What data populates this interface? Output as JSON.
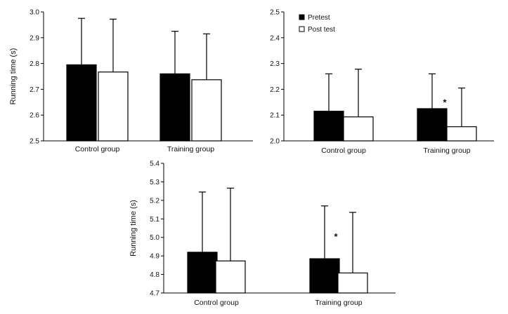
{
  "chart_data": [
    {
      "type": "bar",
      "title": "",
      "ylabel": "Running time (s)",
      "xlabel": "",
      "ylim": [
        2.5,
        3.0
      ],
      "yticks": [
        "2.5",
        "2.6",
        "2.7",
        "2.8",
        "2.9",
        "3.0"
      ],
      "categories": [
        "Control group",
        "Training group"
      ],
      "series": [
        {
          "name": "Pretest",
          "values": [
            2.795,
            2.76
          ],
          "errors": [
            0.18,
            0.165
          ],
          "color": "#000000"
        },
        {
          "name": "Post test",
          "values": [
            2.767,
            2.737
          ],
          "errors": [
            0.205,
            0.178
          ],
          "color": "#ffffff"
        }
      ],
      "annotations": [],
      "legend": "none",
      "grid": false
    },
    {
      "type": "bar",
      "title": "",
      "ylabel": "",
      "xlabel": "",
      "ylim": [
        2.0,
        2.5
      ],
      "yticks": [
        "2.0",
        "2.1",
        "2.2",
        "2.3",
        "2.4",
        "2.5"
      ],
      "categories": [
        "Control group",
        "Training group"
      ],
      "series": [
        {
          "name": "Pretest",
          "values": [
            2.115,
            2.125
          ],
          "errors": [
            0.145,
            0.135
          ],
          "color": "#000000"
        },
        {
          "name": "Post test",
          "values": [
            2.093,
            2.055
          ],
          "errors": [
            0.185,
            0.15
          ],
          "color": "#ffffff"
        }
      ],
      "annotations": [
        {
          "text": "*",
          "category": "Training group"
        }
      ],
      "legend": "top-left",
      "grid": false
    },
    {
      "type": "bar",
      "title": "",
      "ylabel": "Running time (s)",
      "xlabel": "",
      "ylim": [
        4.7,
        5.4
      ],
      "yticks": [
        "4.7",
        "4.8",
        "4.9",
        "5.0",
        "5.1",
        "5.2",
        "5.3",
        "5.4"
      ],
      "categories": [
        "Control group",
        "Training group"
      ],
      "series": [
        {
          "name": "Pretest",
          "values": [
            4.92,
            4.885
          ],
          "errors": [
            0.325,
            0.285
          ],
          "color": "#000000"
        },
        {
          "name": "Post test",
          "values": [
            4.873,
            4.808
          ],
          "errors": [
            0.393,
            0.327
          ],
          "color": "#ffffff"
        }
      ],
      "annotations": [
        {
          "text": "*",
          "category": "Training group"
        }
      ],
      "legend": "none",
      "grid": false
    }
  ]
}
